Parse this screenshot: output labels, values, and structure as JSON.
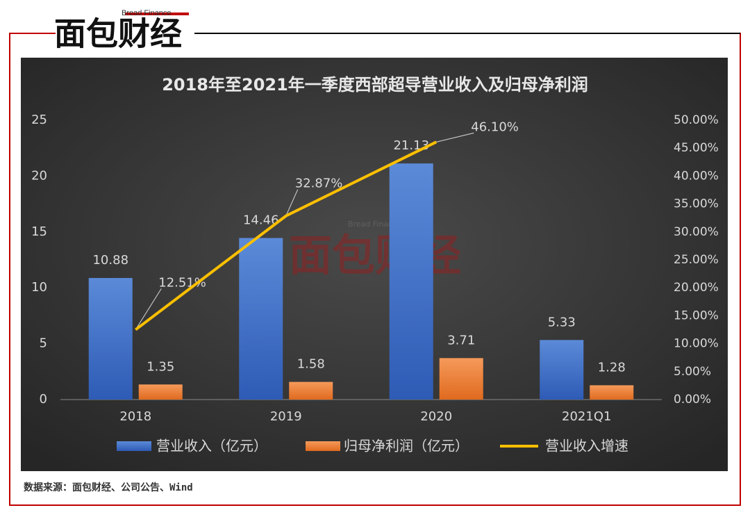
{
  "brand": {
    "name": "面包财经",
    "subtitle": "Bread Finance"
  },
  "source": "数据来源：面包财经、公司公告、Wind",
  "chart_data": {
    "type": "bar",
    "title": "2018年至2021年一季度西部超导营业收入及归母净利润",
    "categories": [
      "2018",
      "2019",
      "2020",
      "2021Q1"
    ],
    "series": [
      {
        "name": "营业收入（亿元）",
        "color": "#4472c4",
        "values": [
          10.88,
          14.46,
          21.13,
          5.33
        ]
      },
      {
        "name": "归母净利润（亿元）",
        "color": "#ed7d31",
        "values": [
          1.35,
          1.58,
          3.71,
          1.28
        ]
      },
      {
        "name": "营业收入增速",
        "color": "#ffc000",
        "type": "line",
        "axis": "y2",
        "values": [
          12.51,
          32.87,
          46.1,
          null
        ],
        "value_labels": [
          "12.51%",
          "32.87%",
          "46.10%",
          null
        ]
      }
    ],
    "ylim": [
      0,
      25
    ],
    "yticks": [
      0,
      5,
      10,
      15,
      20,
      25
    ],
    "y2lim": [
      0,
      50
    ],
    "y2ticks": [
      {
        "value": 0,
        "label": "0.00%"
      },
      {
        "value": 5,
        "label": "5.00%"
      },
      {
        "value": 10,
        "label": "10.00%"
      },
      {
        "value": 15,
        "label": "15.00%"
      },
      {
        "value": 20,
        "label": "20.00%"
      },
      {
        "value": 25,
        "label": "25.00%"
      },
      {
        "value": 30,
        "label": "30.00%"
      },
      {
        "value": 35,
        "label": "35.00%"
      },
      {
        "value": 40,
        "label": "40.00%"
      },
      {
        "value": 45,
        "label": "45.00%"
      },
      {
        "value": 50,
        "label": "50.00%"
      }
    ],
    "legend": "bottom",
    "grid": false
  }
}
